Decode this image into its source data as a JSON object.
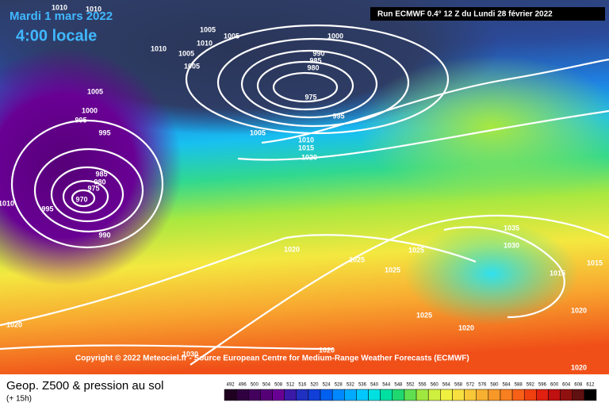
{
  "header": {
    "date": "Mardi 1 mars 2022",
    "time": "4:00 locale",
    "run": "Run ECMWF 0.4° 12 Z du Lundi 28 février 2022"
  },
  "copyright": "Copyright © 2022 Meteociel.fr - Source European Centre for Medium-Range Weather Forecasts (ECMWF)",
  "isobar_labels": [
    "1010",
    "1010",
    "1005",
    "1005",
    "1010",
    "1005",
    "1010",
    "1005",
    "1000",
    "990",
    "985",
    "980",
    "975",
    "995",
    "1005",
    "1000",
    "995",
    "995",
    "1005",
    "1010",
    "1015",
    "1020",
    "985",
    "980",
    "975",
    "970",
    "995",
    "1010",
    "990",
    "1020",
    "1025",
    "1025",
    "1025",
    "1035",
    "1030",
    "1015",
    "1015",
    "1025",
    "1020",
    "1020",
    "1020",
    "1030",
    "1020",
    "1020"
  ],
  "footer": {
    "title": "Geop. Z500 & pression au sol",
    "lead": "(+ 15h)"
  },
  "scale": {
    "labels": [
      492,
      496,
      500,
      504,
      508,
      512,
      516,
      520,
      524,
      528,
      532,
      536,
      540,
      544,
      548,
      552,
      556,
      560,
      564,
      568,
      572,
      576,
      580,
      584,
      588,
      592,
      596,
      600,
      604,
      608,
      612
    ],
    "colors": [
      "#200020",
      "#300040",
      "#42005c",
      "#560078",
      "#690094",
      "#3a1aa8",
      "#2030c0",
      "#1040d8",
      "#0060f0",
      "#0088ff",
      "#00aaff",
      "#00c8ff",
      "#00e0e0",
      "#00e0a0",
      "#20d870",
      "#60e050",
      "#a0e840",
      "#d0f040",
      "#f0f040",
      "#f8e040",
      "#f8c838",
      "#f8b030",
      "#f89828",
      "#f88020",
      "#f86018",
      "#f04010",
      "#e02010",
      "#c01010",
      "#901010",
      "#601010",
      "#000000"
    ]
  }
}
